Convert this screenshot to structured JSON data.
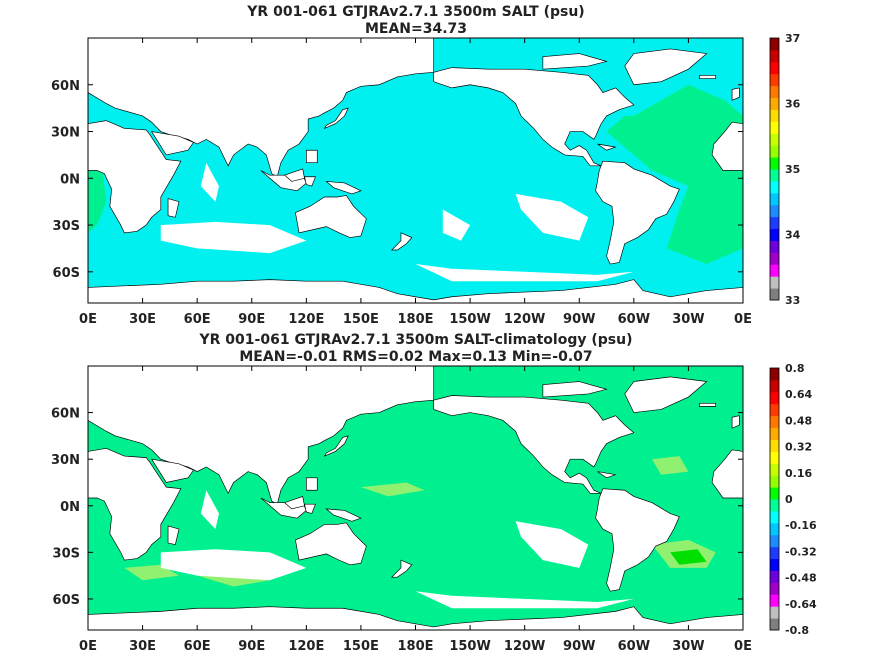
{
  "chart_data": [
    {
      "type": "heatmap",
      "title": "YR 001-061 GTJRAv2.7.1 3500m SALT (psu)",
      "subtitle": "MEAN=34.73",
      "x_ticks": [
        "0E",
        "30E",
        "60E",
        "90E",
        "120E",
        "150E",
        "180E",
        "150W",
        "120W",
        "90W",
        "60W",
        "30W",
        "0E"
      ],
      "y_ticks": [
        "60N",
        "30N",
        "0N",
        "30S",
        "60S"
      ],
      "colorbar_ticks": [
        "37",
        "36",
        "35",
        "34",
        "33"
      ],
      "colorbar_range": [
        33,
        37
      ],
      "colorbar_colors": [
        "#7f7f7f",
        "#bfbfbf",
        "#ff00ff",
        "#a000c8",
        "#6e00dc",
        "#0000ff",
        "#1e3cff",
        "#1e8cff",
        "#00c8ff",
        "#00ffff",
        "#00ff96",
        "#00ff00",
        "#96ff00",
        "#c8ff00",
        "#ffff00",
        "#ffdc00",
        "#ffaa00",
        "#ff7800",
        "#ff3c00",
        "#ff0000",
        "#c80000",
        "#8c0000"
      ],
      "dominant_colors": {
        "land": "#ffffff",
        "ocean_main": "#00f0f0",
        "atlantic": "#00f090"
      }
    },
    {
      "type": "heatmap",
      "title": "YR 001-061 GTJRAv2.7.1 3500m SALT-climatology (psu)",
      "subtitle": "MEAN=-0.01   RMS=0.02   Max=0.13   Min=-0.07",
      "x_ticks": [
        "0E",
        "30E",
        "60E",
        "90E",
        "120E",
        "150E",
        "180E",
        "150W",
        "120W",
        "90W",
        "60W",
        "30W",
        "0E"
      ],
      "y_ticks": [
        "60N",
        "30N",
        "0N",
        "30S",
        "60S"
      ],
      "colorbar_ticks": [
        "0.8",
        "0.64",
        "0.48",
        "0.32",
        "0.16",
        "0",
        "-0.16",
        "-0.32",
        "-0.48",
        "-0.64",
        "-0.8"
      ],
      "colorbar_range": [
        -0.8,
        0.8
      ],
      "colorbar_colors": [
        "#7f7f7f",
        "#bfbfbf",
        "#ff00ff",
        "#a000c8",
        "#6e00dc",
        "#0000ff",
        "#1e3cff",
        "#1e8cff",
        "#00c8ff",
        "#00ffff",
        "#00ff96",
        "#00ff00",
        "#96ff00",
        "#c8ff00",
        "#ffff00",
        "#ffdc00",
        "#ffaa00",
        "#ff7800",
        "#ff3c00",
        "#ff0000",
        "#c80000",
        "#8c0000"
      ],
      "dominant_colors": {
        "land": "#ffffff",
        "ocean_main": "#00f090",
        "positive_patch": "#90f070",
        "strong_positive": "#00e000"
      }
    }
  ]
}
